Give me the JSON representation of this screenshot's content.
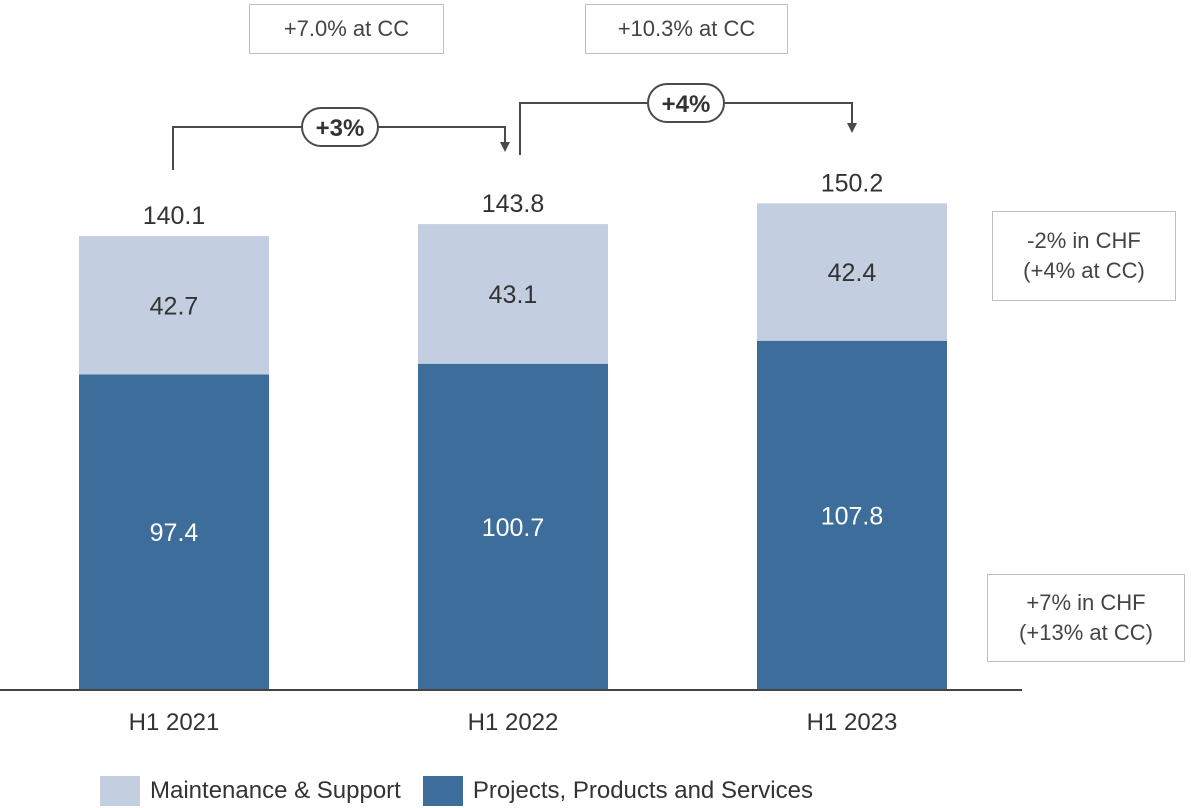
{
  "chart_data": {
    "type": "bar",
    "stacked": true,
    "categories": [
      "H1 2021",
      "H1 2022",
      "H1 2023"
    ],
    "series": [
      {
        "name": "Projects, Products and Services",
        "values": [
          97.4,
          100.7,
          107.8
        ],
        "color": "#3d6e9b"
      },
      {
        "name": "Maintenance & Support",
        "values": [
          42.7,
          43.1,
          42.4
        ],
        "color": "#c3cfe0"
      }
    ],
    "totals": [
      "140.1",
      "143.8",
      "150.2"
    ],
    "growth_arrows": [
      {
        "from": "H1 2021",
        "to": "H1 2022",
        "label": "+3%",
        "cc_note": "+7.0% at CC"
      },
      {
        "from": "H1 2022",
        "to": "H1 2023",
        "label": "+4%",
        "cc_note": "+10.3% at CC"
      }
    ],
    "side_notes": {
      "maintenance": [
        "-2% in CHF",
        "(+4% at CC)"
      ],
      "projects": [
        "+7% in CHF",
        "(+13% at CC)"
      ]
    },
    "legend": {
      "position": "bottom-left"
    },
    "grid": false
  }
}
